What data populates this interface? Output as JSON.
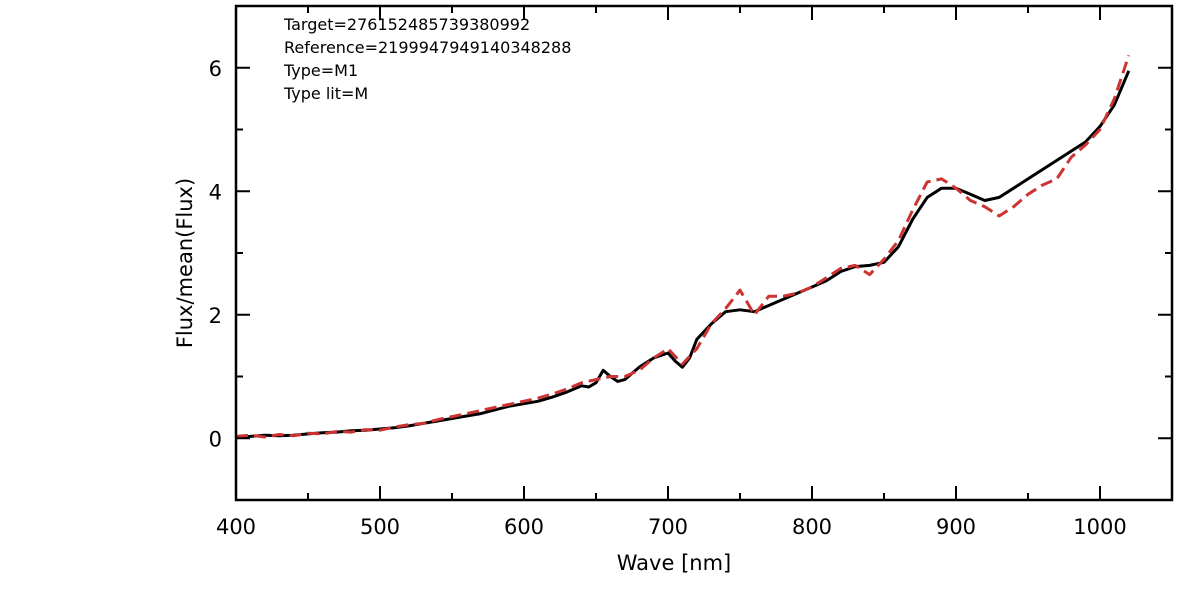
{
  "chart_data": {
    "type": "line",
    "xlabel": "Wave [nm]",
    "ylabel": "Flux/mean(Flux)",
    "xlim": [
      400,
      1050
    ],
    "ylim": [
      -1,
      7
    ],
    "x_ticks": [
      400,
      500,
      600,
      700,
      800,
      900,
      1000
    ],
    "y_ticks": [
      0,
      2,
      4,
      6
    ],
    "grid": false,
    "annotations": [
      "Target=276152485739380992",
      "Reference=2199947949140348288",
      "Type=M1",
      "Type lit=M"
    ],
    "series": [
      {
        "color": "#000000",
        "style": "solid",
        "x": [
          400,
          410,
          420,
          430,
          440,
          450,
          460,
          470,
          480,
          490,
          500,
          510,
          520,
          530,
          540,
          550,
          560,
          570,
          580,
          590,
          600,
          610,
          620,
          630,
          640,
          645,
          650,
          655,
          660,
          665,
          670,
          680,
          690,
          700,
          705,
          710,
          715,
          720,
          730,
          740,
          750,
          760,
          770,
          780,
          790,
          800,
          810,
          820,
          830,
          840,
          850,
          860,
          870,
          880,
          890,
          900,
          910,
          920,
          930,
          940,
          950,
          960,
          970,
          980,
          990,
          1000,
          1010,
          1020
        ],
        "y": [
          0.02,
          0.03,
          0.05,
          0.04,
          0.05,
          0.07,
          0.09,
          0.1,
          0.12,
          0.13,
          0.15,
          0.17,
          0.2,
          0.24,
          0.28,
          0.32,
          0.36,
          0.4,
          0.46,
          0.52,
          0.56,
          0.6,
          0.67,
          0.75,
          0.85,
          0.83,
          0.9,
          1.1,
          1.0,
          0.92,
          0.95,
          1.15,
          1.3,
          1.38,
          1.25,
          1.15,
          1.3,
          1.6,
          1.85,
          2.05,
          2.08,
          2.05,
          2.15,
          2.25,
          2.35,
          2.45,
          2.55,
          2.7,
          2.78,
          2.8,
          2.85,
          3.1,
          3.55,
          3.9,
          4.05,
          4.05,
          3.95,
          3.85,
          3.9,
          4.05,
          4.2,
          4.35,
          4.5,
          4.65,
          4.8,
          5.05,
          5.4,
          5.95
        ]
      },
      {
        "color": "#cc3333",
        "style": "dashed",
        "x": [
          400,
          410,
          420,
          430,
          440,
          450,
          460,
          470,
          480,
          490,
          500,
          510,
          520,
          530,
          540,
          550,
          560,
          570,
          580,
          590,
          600,
          610,
          620,
          630,
          640,
          650,
          660,
          670,
          680,
          690,
          700,
          710,
          720,
          730,
          740,
          750,
          755,
          760,
          770,
          780,
          790,
          800,
          810,
          820,
          830,
          840,
          850,
          860,
          870,
          880,
          890,
          900,
          910,
          920,
          930,
          940,
          950,
          960,
          970,
          980,
          990,
          1000,
          1010,
          1020
        ],
        "y": [
          0.03,
          0.05,
          0.02,
          0.06,
          0.04,
          0.08,
          0.07,
          0.11,
          0.1,
          0.14,
          0.13,
          0.18,
          0.22,
          0.24,
          0.3,
          0.35,
          0.4,
          0.45,
          0.5,
          0.55,
          0.6,
          0.65,
          0.72,
          0.8,
          0.9,
          0.95,
          1.0,
          1.0,
          1.1,
          1.3,
          1.45,
          1.2,
          1.45,
          1.85,
          2.1,
          2.4,
          2.2,
          2.0,
          2.3,
          2.3,
          2.35,
          2.45,
          2.6,
          2.75,
          2.8,
          2.65,
          2.9,
          3.2,
          3.7,
          4.15,
          4.2,
          4.05,
          3.85,
          3.75,
          3.6,
          3.75,
          3.95,
          4.1,
          4.2,
          4.55,
          4.75,
          5.0,
          5.5,
          6.2
        ]
      }
    ]
  }
}
